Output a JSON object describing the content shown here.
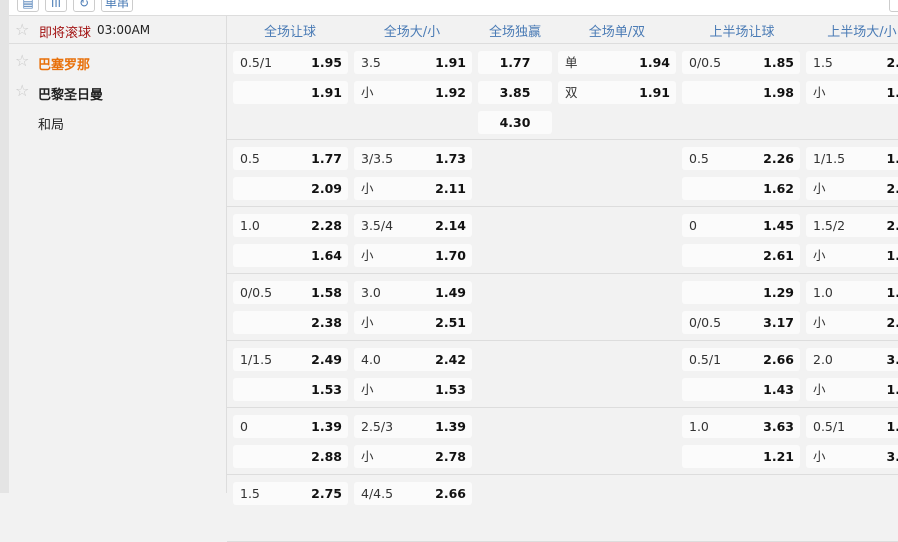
{
  "toolbar": {
    "buttons": [
      {
        "icon": "print-icon",
        "glyph": "▤"
      },
      {
        "icon": "bar-chart-icon",
        "glyph": "ıll"
      },
      {
        "icon": "refresh-icon",
        "glyph": "↻"
      }
    ],
    "parlay_label": "单串"
  },
  "match": {
    "status": "即将滚球",
    "time": "03:00AM",
    "home": "巴塞罗那",
    "away": "巴黎圣日曼",
    "draw": "和局"
  },
  "columns": [
    "全场让球",
    "全场大/小",
    "全场独赢",
    "全场单/双",
    "上半场让球",
    "上半场大/小"
  ],
  "colors": {
    "status": "#a31515",
    "home": "#e8700a",
    "header": "#4a7bb5"
  },
  "groups": [
    {
      "rows": [
        [
          [
            "0.5/1",
            "1.95"
          ],
          [
            "3.5",
            "1.91"
          ],
          [
            "",
            "1.77"
          ],
          [
            "单",
            "1.94"
          ],
          [
            "0/0.5",
            "1.85"
          ],
          [
            "1.5",
            "2."
          ]
        ],
        [
          [
            "",
            "1.91"
          ],
          [
            "小",
            "1.92"
          ],
          [
            "",
            "3.85"
          ],
          [
            "双",
            "1.91"
          ],
          [
            "",
            "1.98"
          ],
          [
            "小",
            "1."
          ]
        ],
        [
          null,
          null,
          [
            "",
            "4.30"
          ],
          null,
          null,
          null
        ]
      ]
    },
    {
      "rows": [
        [
          [
            "0.5",
            "1.77"
          ],
          [
            "3/3.5",
            "1.73"
          ],
          null,
          null,
          [
            "0.5",
            "2.26"
          ],
          [
            "1/1.5",
            "1."
          ]
        ],
        [
          [
            "",
            "2.09"
          ],
          [
            "小",
            "2.11"
          ],
          null,
          null,
          [
            "",
            "1.62"
          ],
          [
            "小",
            "2."
          ]
        ]
      ]
    },
    {
      "rows": [
        [
          [
            "1.0",
            "2.28"
          ],
          [
            "3.5/4",
            "2.14"
          ],
          null,
          null,
          [
            "0",
            "1.45"
          ],
          [
            "1.5/2",
            "2."
          ]
        ],
        [
          [
            "",
            "1.64"
          ],
          [
            "小",
            "1.70"
          ],
          null,
          null,
          [
            "",
            "2.61"
          ],
          [
            "小",
            "1."
          ]
        ]
      ]
    },
    {
      "rows": [
        [
          [
            "0/0.5",
            "1.58"
          ],
          [
            "3.0",
            "1.49"
          ],
          null,
          null,
          [
            "",
            "1.29"
          ],
          [
            "1.0",
            "1."
          ]
        ],
        [
          [
            "",
            "2.38"
          ],
          [
            "小",
            "2.51"
          ],
          null,
          null,
          [
            "0/0.5",
            "3.17"
          ],
          [
            "小",
            "2."
          ]
        ]
      ]
    },
    {
      "rows": [
        [
          [
            "1/1.5",
            "2.49"
          ],
          [
            "4.0",
            "2.42"
          ],
          null,
          null,
          [
            "0.5/1",
            "2.66"
          ],
          [
            "2.0",
            "3."
          ]
        ],
        [
          [
            "",
            "1.53"
          ],
          [
            "小",
            "1.53"
          ],
          null,
          null,
          [
            "",
            "1.43"
          ],
          [
            "小",
            "1."
          ]
        ]
      ]
    },
    {
      "rows": [
        [
          [
            "0",
            "1.39"
          ],
          [
            "2.5/3",
            "1.39"
          ],
          null,
          null,
          [
            "1.0",
            "3.63"
          ],
          [
            "0.5/1",
            "1."
          ]
        ],
        [
          [
            "",
            "2.88"
          ],
          [
            "小",
            "2.78"
          ],
          null,
          null,
          [
            "",
            "1.21"
          ],
          [
            "小",
            "3."
          ]
        ]
      ]
    },
    {
      "rows": [
        [
          [
            "1.5",
            "2.75"
          ],
          [
            "4/4.5",
            "2.66"
          ],
          null,
          null,
          null,
          null
        ]
      ]
    }
  ]
}
